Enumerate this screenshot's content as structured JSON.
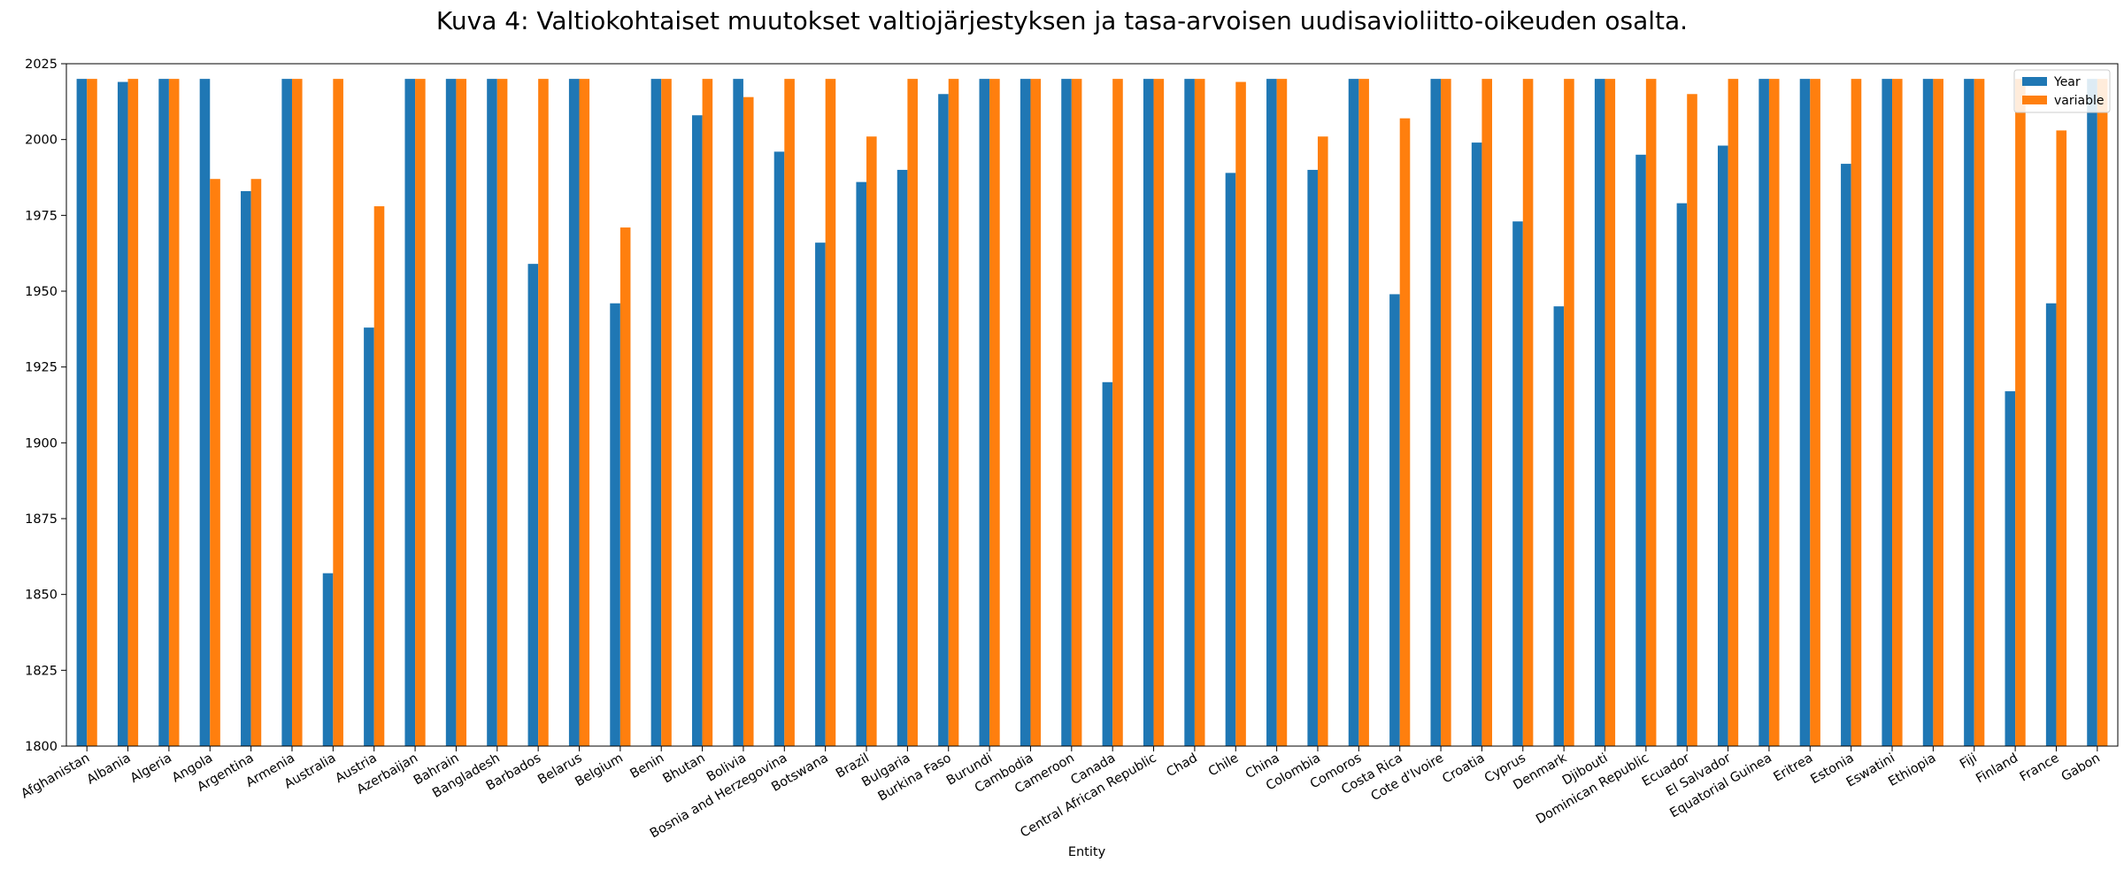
{
  "chart_data": {
    "type": "bar",
    "title": "Kuva 4: Valtiokohtaiset muutokset valtiojärjestyksen ja tasa-arvoisen uudisavioliitto-oikeuden osalta.",
    "xlabel": "Entity",
    "ylabel": "",
    "ylim": [
      1800,
      2025
    ],
    "yticks": [
      1800,
      1825,
      1850,
      1875,
      1900,
      1925,
      1950,
      1975,
      2000,
      2025
    ],
    "grid": false,
    "legend_position": "top-right",
    "categories": [
      "Afghanistan",
      "Albania",
      "Algeria",
      "Angola",
      "Argentina",
      "Armenia",
      "Australia",
      "Austria",
      "Azerbaijan",
      "Bahrain",
      "Bangladesh",
      "Barbados",
      "Belarus",
      "Belgium",
      "Benin",
      "Bhutan",
      "Bolivia",
      "Bosnia and Herzegovina",
      "Botswana",
      "Brazil",
      "Bulgaria",
      "Burkina Faso",
      "Burundi",
      "Cambodia",
      "Cameroon",
      "Canada",
      "Central African Republic",
      "Chad",
      "Chile",
      "China",
      "Colombia",
      "Comoros",
      "Costa Rica",
      "Cote d'Ivoire",
      "Croatia",
      "Cyprus",
      "Denmark",
      "Djibouti",
      "Dominican Republic",
      "Ecuador",
      "El Salvador",
      "Equatorial Guinea",
      "Eritrea",
      "Estonia",
      "Eswatini",
      "Ethiopia",
      "Fiji",
      "Finland",
      "France",
      "Gabon"
    ],
    "series": [
      {
        "name": "Year",
        "color": "#1f77b4",
        "values": [
          2020,
          2019,
          2020,
          2020,
          1983,
          2020,
          1857,
          1938,
          2020,
          2020,
          2020,
          1959,
          2020,
          1946,
          2020,
          2008,
          2020,
          1996,
          1966,
          1986,
          1990,
          2015,
          2020,
          2020,
          2020,
          1920,
          2020,
          2020,
          1989,
          2020,
          1990,
          2020,
          1949,
          2020,
          1999,
          1973,
          1945,
          2020,
          1995,
          1979,
          1998,
          2020,
          2020,
          1992,
          2020,
          2020,
          2020,
          1917,
          1946,
          2020
        ]
      },
      {
        "name": "variable",
        "color": "#ff7f0e",
        "values": [
          2020,
          2020,
          2020,
          1987,
          1987,
          2020,
          2020,
          1978,
          2020,
          2020,
          2020,
          2020,
          2020,
          1971,
          2020,
          2020,
          2014,
          2020,
          2020,
          2001,
          2020,
          2020,
          2020,
          2020,
          2020,
          2020,
          2020,
          2020,
          2019,
          2020,
          2001,
          2020,
          2007,
          2020,
          2020,
          2020,
          2020,
          2020,
          2020,
          2015,
          2020,
          2020,
          2020,
          2020,
          2020,
          2020,
          2020,
          2020,
          2003,
          2020
        ]
      }
    ]
  }
}
